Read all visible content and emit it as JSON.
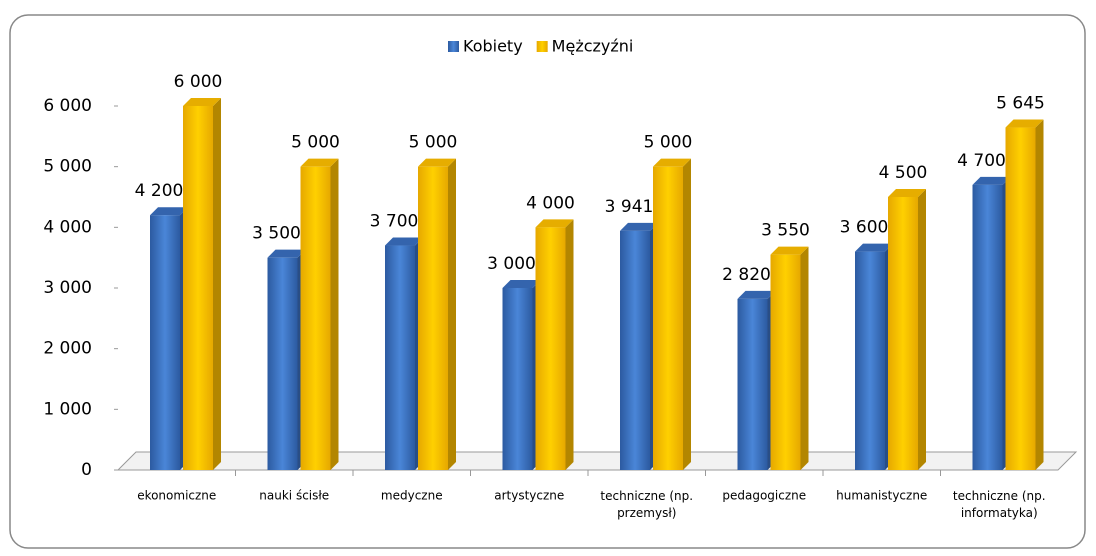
{
  "chart_data": {
    "type": "bar",
    "categories": [
      "ekonomiczne",
      "nauki ścisłe",
      "medyczne",
      "artystyczne",
      "techniczne (np. przemysł)",
      "pedagogiczne",
      "humanistyczne",
      "techniczne (np. informatyka)"
    ],
    "series": [
      {
        "name": "Kobiety",
        "color": "#3a6fc0",
        "values": [
          4200,
          3500,
          3700,
          3000,
          3941,
          2820,
          3600,
          4700
        ],
        "value_labels": [
          "4 200",
          "3 500",
          "3 700",
          "3 000",
          "3 941",
          "2 820",
          "3 600",
          "4 700"
        ]
      },
      {
        "name": "Mężczyźni",
        "color": "#ffc000",
        "values": [
          6000,
          5000,
          5000,
          4000,
          5000,
          3550,
          4500,
          5645
        ],
        "value_labels": [
          "6 000",
          "5 000",
          "5 000",
          "4 000",
          "5 000",
          "3 550",
          "4 500",
          "5 645"
        ]
      }
    ],
    "ylim": [
      0,
      6000
    ],
    "yticks": [
      0,
      {
        "value": 1000,
        "label": "1 000"
      },
      {
        "value": 2000,
        "label": "2 000"
      },
      {
        "value": 3000,
        "label": "3 000"
      },
      {
        "value": 4000,
        "label": "4 000"
      },
      {
        "value": 5000,
        "label": "5 000"
      },
      {
        "value": 6000,
        "label": "6 000"
      }
    ],
    "legend": "top"
  }
}
